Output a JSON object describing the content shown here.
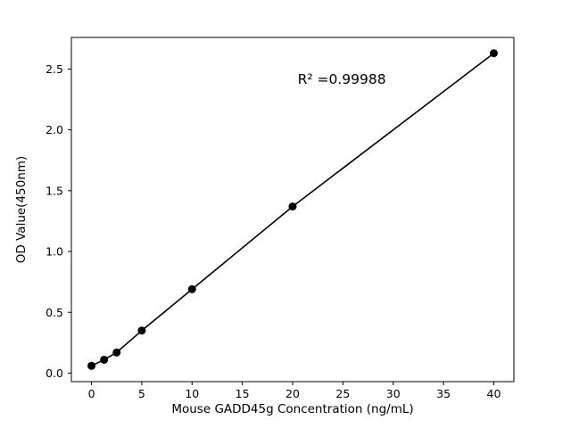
{
  "chart_data": {
    "type": "scatter",
    "x": [
      0,
      1.25,
      2.5,
      5,
      10,
      20,
      40
    ],
    "y": [
      0.06,
      0.11,
      0.17,
      0.35,
      0.69,
      1.37,
      2.63
    ],
    "line_through_points": true,
    "title": "",
    "xlabel": "Mouse GADD45g Concentration (ng/mL)",
    "ylabel": "OD Value(450nm)",
    "annotation": {
      "text": "R² =0.99988",
      "x": 20.5,
      "y": 2.38
    },
    "xticks": [
      0,
      5,
      10,
      15,
      20,
      25,
      30,
      35,
      40
    ],
    "xtick_labels": [
      "0",
      "5",
      "10",
      "15",
      "20",
      "25",
      "30",
      "35",
      "40"
    ],
    "yticks": [
      0.0,
      0.5,
      1.0,
      1.5,
      2.0,
      2.5
    ],
    "ytick_labels": [
      "0.0",
      "0.5",
      "1.0",
      "1.5",
      "2.0",
      "2.5"
    ],
    "xlim": [
      -2,
      42
    ],
    "ylim": [
      -0.07,
      2.76
    ],
    "point_color": "#000000",
    "line_color": "#000000",
    "frame_color": "#000000",
    "background": "#ffffff",
    "grid": false,
    "legend": null
  }
}
